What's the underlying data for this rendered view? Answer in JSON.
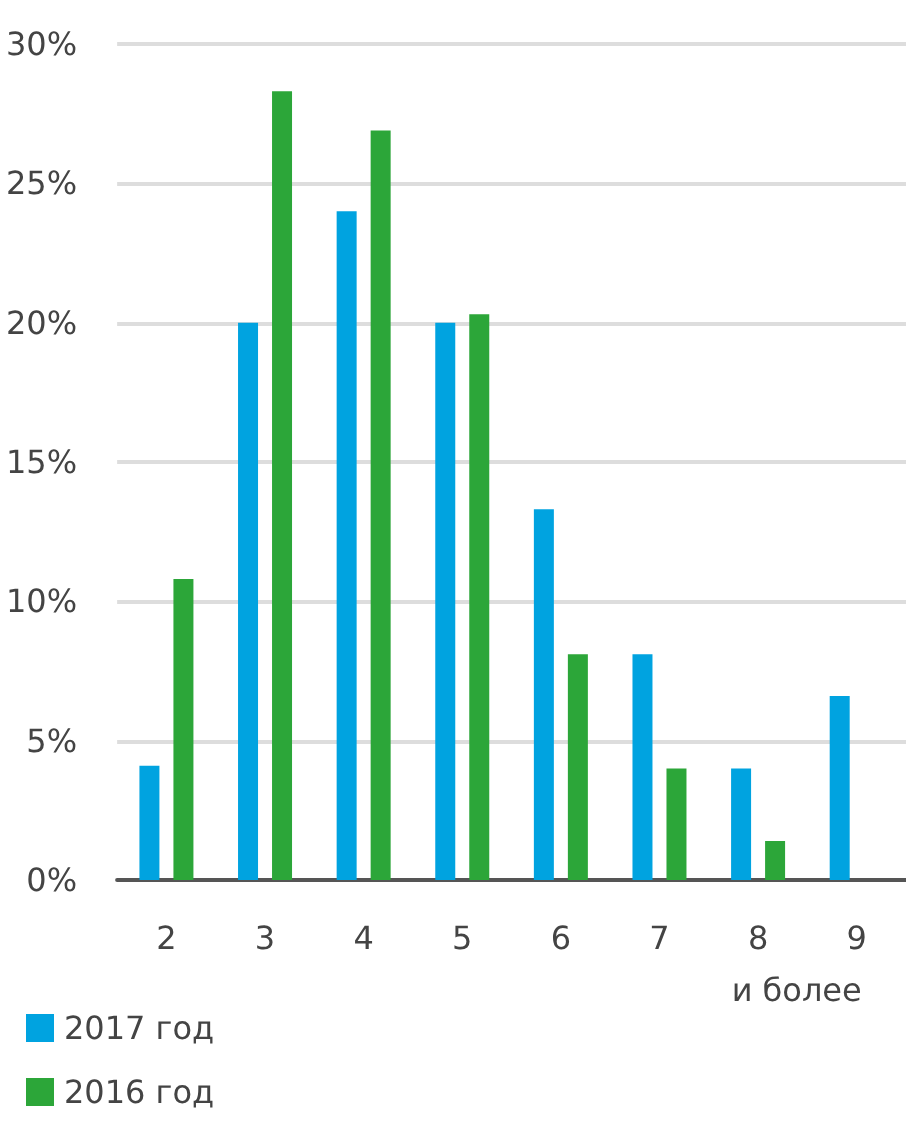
{
  "chart_data": {
    "type": "bar",
    "categories": [
      "2",
      "3",
      "4",
      "5",
      "6",
      "7",
      "8",
      "9\nи более"
    ],
    "series": [
      {
        "name": "2017 год",
        "color": "#00a3e0",
        "values": [
          4.1,
          20,
          24,
          20,
          13.3,
          8.1,
          4,
          6.6
        ]
      },
      {
        "name": "2016 год",
        "color": "#2ca639",
        "values": [
          10.8,
          28.3,
          26.9,
          20.3,
          8.1,
          4,
          1.4,
          null
        ]
      }
    ],
    "ylim": [
      0,
      30
    ],
    "yticks": [
      {
        "value": 0,
        "label": "0%"
      },
      {
        "value": 5,
        "label": "5%"
      },
      {
        "value": 10,
        "label": "10%"
      },
      {
        "value": 15,
        "label": "15%"
      },
      {
        "value": 20,
        "label": "20%"
      },
      {
        "value": 25,
        "label": "25%"
      },
      {
        "value": 30,
        "label": "30%"
      }
    ],
    "grid": "y",
    "legend": "bottom left"
  }
}
